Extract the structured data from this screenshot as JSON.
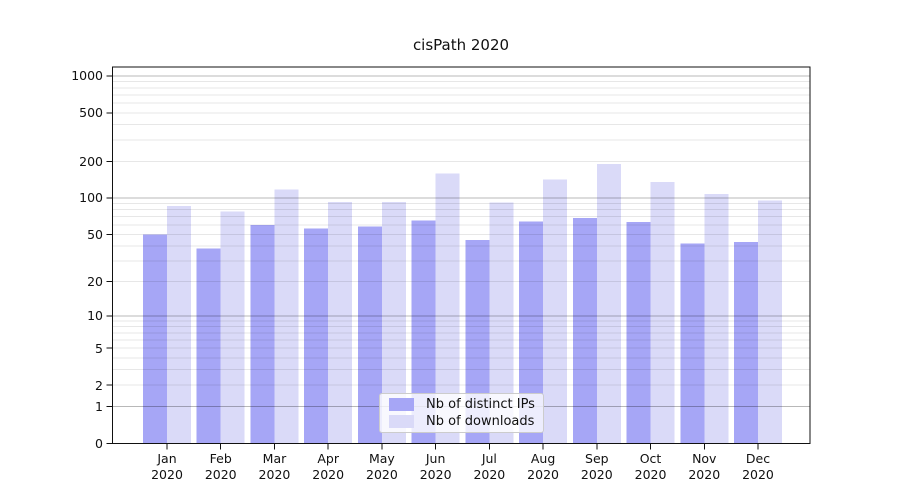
{
  "figure": {
    "title": "cisPath 2020",
    "background": "#ffffff"
  },
  "chart_data": {
    "type": "bar",
    "title": "cisPath 2020",
    "xlabel": "",
    "ylabel": "",
    "year": "2020",
    "categories": [
      "Jan",
      "Feb",
      "Mar",
      "Apr",
      "May",
      "Jun",
      "Jul",
      "Aug",
      "Sep",
      "Oct",
      "Nov",
      "Dec"
    ],
    "series": [
      {
        "name": "Nb of distinct IPs",
        "color": "#a6a6f6",
        "values": [
          50,
          38,
          60,
          56,
          58,
          65,
          45,
          64,
          68,
          63,
          42,
          43
        ]
      },
      {
        "name": "Nb of downloads",
        "color": "#dadaf8",
        "values": [
          86,
          77,
          117,
          93,
          93,
          159,
          92,
          142,
          191,
          135,
          108,
          95
        ]
      }
    ],
    "yscale": "log1p",
    "yticks": [
      0,
      1,
      2,
      5,
      10,
      20,
      50,
      100,
      200,
      500,
      1000
    ],
    "major_grid_values": [
      1,
      10,
      100,
      1000
    ],
    "ylim": [
      0,
      1170
    ],
    "grid": "on",
    "legend_position": "inside-bottom-center",
    "colors": {
      "axis": "#111111",
      "major_grid": "rgba(0,0,0,0.28)",
      "minor_grid": "rgba(0,0,0,0.095)",
      "legend_border": "#cccccc"
    }
  }
}
